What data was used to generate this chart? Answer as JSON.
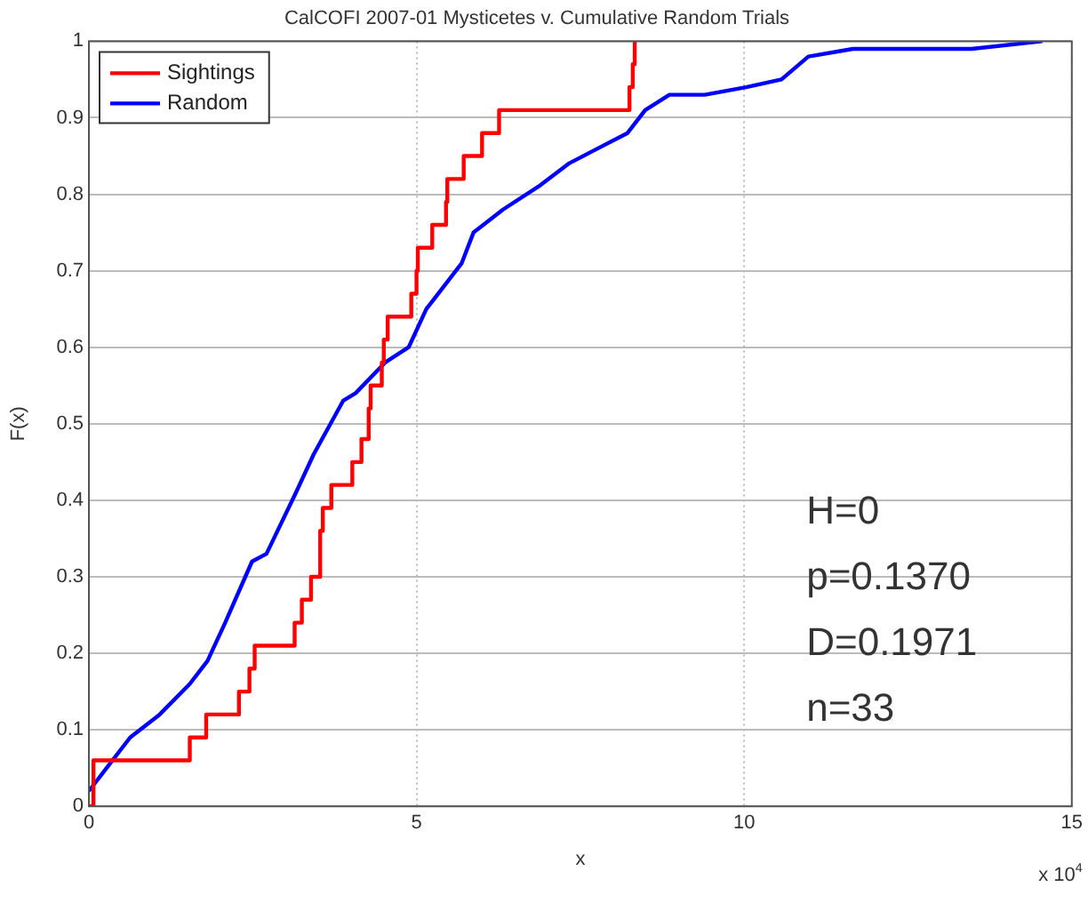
{
  "chart_data": {
    "type": "line",
    "title": "CalCOFI 2007-01 Mysticetes v. Cumulative Random Trials",
    "xlabel": "x",
    "ylabel": "F(x)",
    "xlim": [
      0,
      15
    ],
    "xticks": [
      0,
      5,
      10,
      15
    ],
    "ylim": [
      0,
      1
    ],
    "yticks": [
      0,
      0.1,
      0.2,
      0.3,
      0.4,
      0.5,
      0.6,
      0.7,
      0.8,
      0.9,
      1
    ],
    "grid": true,
    "legend": "top left",
    "marker": "none",
    "line_style": "solid",
    "annotations": [
      "x 10$^{4}$",
      "H=0",
      "p=0.1370",
      "D=0.1971",
      "n=33"
    ],
    "series": [
      {
        "name": "Sightings",
        "color": "#ff0000",
        "type": "step",
        "x": [
          0,
          0.07,
          1.54,
          1.79,
          2.29,
          2.45,
          2.53,
          3.14,
          3.25,
          3.39,
          3.53,
          3.57,
          3.7,
          4.02,
          4.16,
          4.27,
          4.3,
          4.47,
          4.5,
          4.56,
          4.92,
          5.0,
          5.02,
          5.24,
          5.45,
          5.47,
          5.72,
          6.0,
          6.26,
          8.25,
          8.3,
          8.33,
          8.35
        ],
        "values": [
          0,
          0.06,
          0.09,
          0.12,
          0.15,
          0.18,
          0.21,
          0.24,
          0.27,
          0.3,
          0.36,
          0.39,
          0.42,
          0.45,
          0.48,
          0.52,
          0.55,
          0.58,
          0.61,
          0.64,
          0.67,
          0.7,
          0.73,
          0.76,
          0.79,
          0.82,
          0.85,
          0.88,
          0.91,
          0.94,
          0.97,
          1,
          1
        ]
      },
      {
        "name": "Random",
        "color": "#0000ff",
        "type": "line",
        "x": [
          0,
          0.27,
          0.63,
          1.08,
          1.54,
          1.81,
          2.08,
          2.49,
          2.71,
          3.16,
          3.43,
          3.88,
          4.07,
          4.52,
          4.88,
          5.15,
          5.24,
          5.69,
          5.87,
          6.32,
          6.86,
          7.32,
          7.77,
          8.22,
          8.49,
          8.86,
          9.4,
          10.03,
          10.57,
          10.98,
          11.66,
          12.56,
          13.47,
          14.55
        ],
        "values": [
          0.02,
          0.05,
          0.09,
          0.12,
          0.16,
          0.19,
          0.24,
          0.32,
          0.33,
          0.41,
          0.46,
          0.53,
          0.54,
          0.58,
          0.6,
          0.65,
          0.66,
          0.71,
          0.75,
          0.78,
          0.81,
          0.84,
          0.86,
          0.88,
          0.91,
          0.93,
          0.93,
          0.94,
          0.95,
          0.98,
          0.99,
          0.99,
          0.99,
          1
        ]
      }
    ]
  }
}
